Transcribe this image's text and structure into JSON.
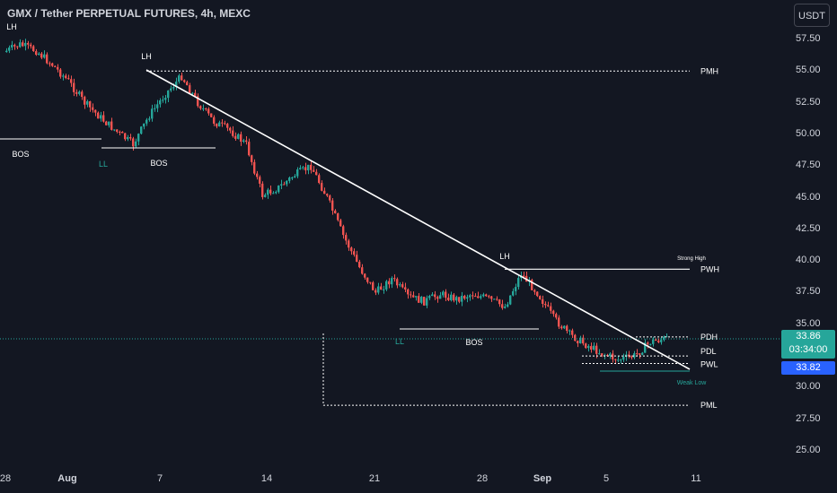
{
  "header": {
    "title": "GMX / Tether PERPETUAL FUTURES, 4h, MEXC",
    "currency_button": "USDT"
  },
  "price_axis": {
    "ticks": [
      "57.50",
      "55.00",
      "52.50",
      "50.00",
      "47.50",
      "45.00",
      "42.50",
      "40.00",
      "37.50",
      "35.00",
      "32.50",
      "30.00",
      "27.50",
      "25.00"
    ]
  },
  "time_axis": {
    "ticks": [
      "28",
      "Aug",
      "7",
      "14",
      "21",
      "28",
      "Sep",
      "5",
      "11"
    ]
  },
  "last_price": {
    "value": "33.86",
    "countdown": "03:34:00"
  },
  "bid_price": {
    "value": "33.82"
  },
  "colors": {
    "up": "#26a69a",
    "down": "#ef5350",
    "background": "#131722",
    "line": "#ffffff",
    "accent": "#2962ff"
  },
  "chart_data": {
    "type": "candlestick",
    "title": "GMX / Tether PERPETUAL FUTURES, 4h, MEXC",
    "interval": "4h",
    "exchange": "MEXC",
    "ylim": [
      24,
      58.5
    ],
    "path_points": [
      {
        "date": "Jul 28",
        "price": 56.5
      },
      {
        "date": "Jul 29",
        "price": 57.1
      },
      {
        "date": "Jul 30",
        "price": 56.6
      },
      {
        "date": "Jul 31",
        "price": 55.5
      },
      {
        "date": "Aug 1",
        "price": 54.2
      },
      {
        "date": "Aug 2",
        "price": 52.5
      },
      {
        "date": "Aug 3",
        "price": 51.3
      },
      {
        "date": "Aug 4",
        "price": 50.2
      },
      {
        "date": "Aug 5",
        "price": 49.2
      },
      {
        "date": "Aug 6",
        "price": 51.5
      },
      {
        "date": "Aug 7",
        "price": 53.2
      },
      {
        "date": "Aug 8",
        "price": 54.6
      },
      {
        "date": "Aug 9",
        "price": 52.5
      },
      {
        "date": "Aug 10",
        "price": 51.0
      },
      {
        "date": "Aug 11",
        "price": 50.3
      },
      {
        "date": "Aug 12",
        "price": 49.2
      },
      {
        "date": "Aug 13",
        "price": 45.2
      },
      {
        "date": "Aug 14",
        "price": 45.8
      },
      {
        "date": "Aug 15",
        "price": 46.8
      },
      {
        "date": "Aug 16",
        "price": 47.5
      },
      {
        "date": "Aug 17",
        "price": 45.0
      },
      {
        "date": "Aug 18",
        "price": 42.0
      },
      {
        "date": "Aug 19",
        "price": 39.5
      },
      {
        "date": "Aug 20",
        "price": 37.5
      },
      {
        "date": "Aug 21",
        "price": 38.6
      },
      {
        "date": "Aug 22",
        "price": 37.2
      },
      {
        "date": "Aug 23",
        "price": 36.8
      },
      {
        "date": "Aug 24",
        "price": 37.4
      },
      {
        "date": "Aug 25",
        "price": 37.0
      },
      {
        "date": "Aug 26",
        "price": 37.4
      },
      {
        "date": "Aug 27",
        "price": 37.0
      },
      {
        "date": "Aug 28",
        "price": 36.4
      },
      {
        "date": "Aug 29",
        "price": 39.0
      },
      {
        "date": "Aug 30",
        "price": 37.5
      },
      {
        "date": "Aug 31",
        "price": 35.5
      },
      {
        "date": "Sep 1",
        "price": 34.2
      },
      {
        "date": "Sep 2",
        "price": 33.4
      },
      {
        "date": "Sep 3",
        "price": 32.7
      },
      {
        "date": "Sep 4",
        "price": 32.2
      },
      {
        "date": "Sep 5",
        "price": 32.5
      },
      {
        "date": "Sep 6",
        "price": 33.6
      },
      {
        "date": "Sep 7",
        "price": 33.9
      }
    ],
    "levels": [
      {
        "name": "PMH",
        "price": 55.0
      },
      {
        "name": "PWH",
        "price": 39.35
      },
      {
        "name": "PDH",
        "price": 34.0
      },
      {
        "name": "PDL",
        "price": 32.5
      },
      {
        "name": "PWL",
        "price": 31.9
      },
      {
        "name": "PML",
        "price": 28.6
      }
    ],
    "annotations": [
      "LH",
      "LH",
      "LH",
      "BOS",
      "BOS",
      "BOS",
      "LL",
      "LL",
      "Strong High",
      "Weak Low"
    ]
  }
}
